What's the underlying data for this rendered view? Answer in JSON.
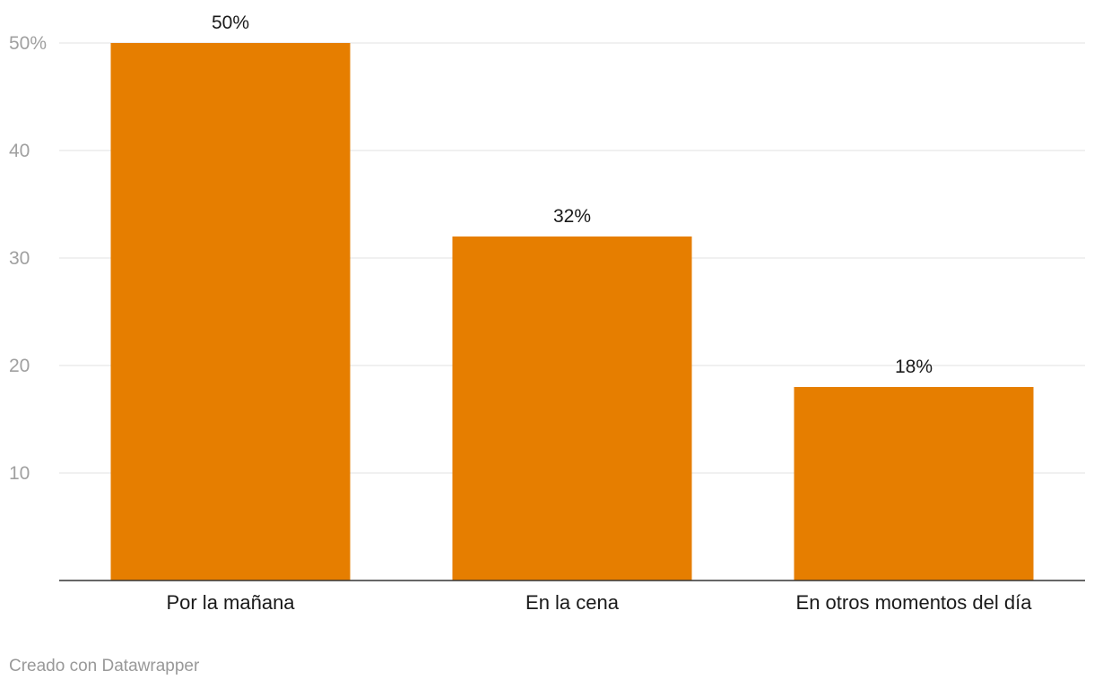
{
  "chart_data": {
    "type": "bar",
    "categories": [
      "Por la mañana",
      "En la cena",
      "En otros momentos del día"
    ],
    "values": [
      50,
      32,
      18
    ],
    "data_labels": [
      "50%",
      "32%",
      "18%"
    ],
    "yticks": [
      {
        "value": 10,
        "label": "10"
      },
      {
        "value": 20,
        "label": "20"
      },
      {
        "value": 30,
        "label": "30"
      },
      {
        "value": 40,
        "label": "40"
      },
      {
        "value": 50,
        "label": "50%"
      }
    ],
    "ylim": [
      0,
      50
    ],
    "grid": true,
    "legend": "none",
    "bar_color": "#e67e00",
    "title": "",
    "xlabel": "",
    "ylabel": ""
  },
  "footer": {
    "credit": "Creado con Datawrapper"
  }
}
